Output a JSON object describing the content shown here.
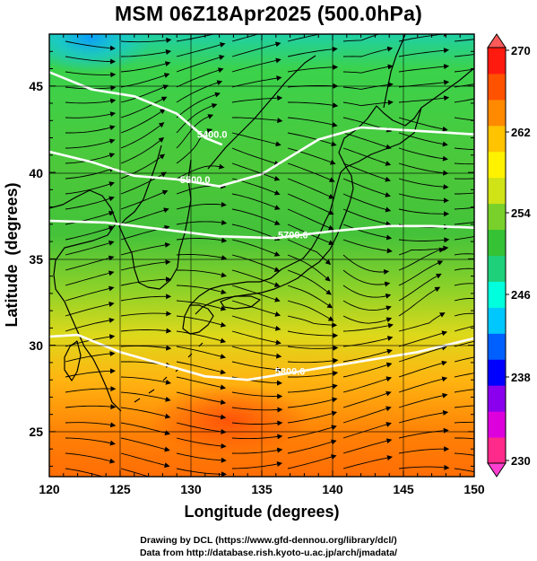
{
  "title": "MSM 06Z18Apr2025 (500.0hPa)",
  "map": {
    "xlabel": "Longitude (degrees)",
    "ylabel": "Latitude  (degrees)",
    "lon_range": [
      120,
      150
    ],
    "lat_range": [
      22.4,
      48
    ],
    "lon_ticks": [
      "120",
      "125",
      "130",
      "135",
      "140",
      "145",
      "150"
    ],
    "lat_ticks": [
      "25",
      "30",
      "35",
      "40",
      "45"
    ],
    "grid_lons": [
      125,
      130,
      135,
      140,
      145
    ],
    "grid_lats": [
      25,
      30,
      35,
      40,
      45
    ],
    "background_field": "temperature",
    "overlay": "wind streamlines with arrowheads",
    "coastlines": "black",
    "contour_color": "#ffffff"
  },
  "contours": [
    {
      "label": "5400.0",
      "points": [
        [
          120,
          45.8
        ],
        [
          123,
          44.8
        ],
        [
          126,
          44.4
        ],
        [
          129,
          43.4
        ],
        [
          131,
          42.0
        ],
        [
          132.2,
          41.6
        ]
      ],
      "label_at": [
        131.5,
        42.2
      ]
    },
    {
      "label": "5500.0",
      "points": [
        [
          120,
          41.2
        ],
        [
          123,
          40.6
        ],
        [
          126,
          39.8
        ],
        [
          129,
          39.6
        ],
        [
          132,
          39.2
        ],
        [
          135,
          39.9
        ],
        [
          137,
          40.9
        ],
        [
          139,
          41.9
        ],
        [
          142,
          42.6
        ],
        [
          146,
          42.4
        ],
        [
          150,
          42.2
        ]
      ],
      "label_at": [
        130.3,
        39.6
      ]
    },
    {
      "label": "5700.0",
      "points": [
        [
          120,
          37.2
        ],
        [
          124,
          37.1
        ],
        [
          128,
          36.7
        ],
        [
          132,
          36.3
        ],
        [
          136,
          36.2
        ],
        [
          140,
          36.6
        ],
        [
          144,
          36.9
        ],
        [
          147,
          36.9
        ],
        [
          150,
          36.8
        ]
      ],
      "label_at": [
        137.2,
        36.4
      ]
    },
    {
      "label": "5800.0",
      "points": [
        [
          120,
          30.5
        ],
        [
          122,
          30.6
        ],
        [
          125,
          29.6
        ],
        [
          128,
          28.9
        ],
        [
          131,
          28.2
        ],
        [
          134,
          28.0
        ],
        [
          137,
          28.4
        ],
        [
          140,
          28.8
        ],
        [
          143,
          29.2
        ],
        [
          146,
          29.6
        ],
        [
          150,
          30.4
        ]
      ],
      "label_at": [
        137.0,
        28.5
      ]
    }
  ],
  "colorbar": {
    "min": 230,
    "max": 270,
    "labels": [
      "270",
      "262",
      "254",
      "246",
      "238",
      "230"
    ],
    "colors": [
      "#ff2a8a",
      "#dd00dd",
      "#8a00ee",
      "#0000ff",
      "#0060ff",
      "#00c8ff",
      "#00ffdd",
      "#1fd07a",
      "#36c235",
      "#79d02a",
      "#cfe317",
      "#fff200",
      "#ffc300",
      "#ff8a00",
      "#ff5200",
      "#ff1a10"
    ]
  },
  "credits": [
    "Drawing by DCL (https://www.gfd-dennou.org/library/dcl/)",
    "Data from http://database.rish.kyoto-u.ac.jp/arch/jmadata/"
  ]
}
